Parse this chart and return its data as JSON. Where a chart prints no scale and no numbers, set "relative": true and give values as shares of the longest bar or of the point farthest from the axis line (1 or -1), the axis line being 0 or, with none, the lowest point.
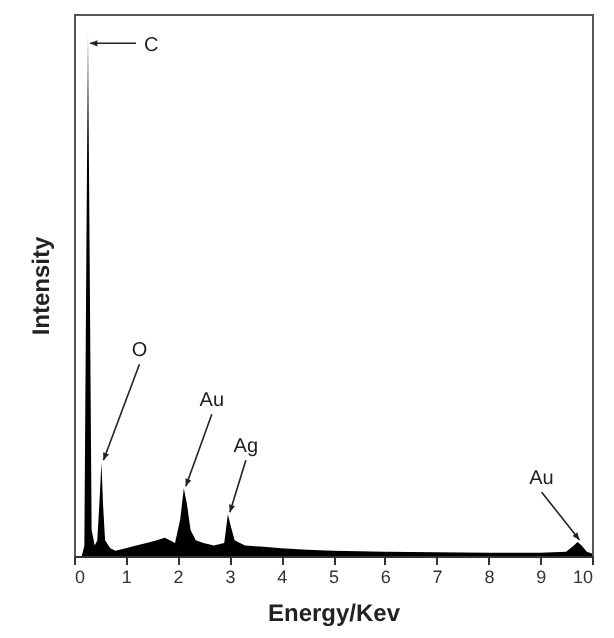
{
  "chart_data": {
    "type": "area",
    "xlabel": "Energy/Kev",
    "ylabel": "Intensity",
    "relative": true,
    "xlim": [
      0,
      10
    ],
    "xticks": [
      0,
      1,
      2,
      3,
      4,
      5,
      6,
      7,
      8,
      9,
      10
    ],
    "grid": false,
    "x": [
      0,
      0.15,
      0.2,
      0.24,
      0.27,
      0.3,
      0.34,
      0.4,
      0.45,
      0.5,
      0.53,
      0.56,
      0.6,
      0.7,
      0.8,
      1.0,
      1.2,
      1.4,
      1.6,
      1.75,
      1.85,
      1.95,
      2.05,
      2.12,
      2.18,
      2.25,
      2.35,
      2.5,
      2.7,
      2.9,
      2.97,
      3.02,
      3.1,
      3.3,
      3.6,
      4,
      4.5,
      5,
      6,
      7,
      8,
      9,
      9.5,
      9.65,
      9.72,
      9.8,
      9.9,
      10
    ],
    "series": [
      {
        "color": "#000000",
        "values": [
          0,
          0,
          0.02,
          0.6,
          1,
          0.6,
          0.05,
          0.02,
          0.03,
          0.12,
          0.18,
          0.1,
          0.03,
          0.015,
          0.01,
          0.015,
          0.02,
          0.025,
          0.03,
          0.035,
          0.03,
          0.025,
          0.07,
          0.13,
          0.1,
          0.05,
          0.03,
          0.025,
          0.02,
          0.025,
          0.08,
          0.06,
          0.03,
          0.02,
          0.018,
          0.015,
          0.012,
          0.01,
          0.008,
          0.007,
          0.006,
          0.006,
          0.008,
          0.02,
          0.027,
          0.02,
          0.008,
          0.005
        ]
      }
    ],
    "annotations": [
      {
        "text": "C",
        "x": 0.27,
        "y": 0.98
      },
      {
        "text": "O",
        "x": 0.53,
        "y": 0.18
      },
      {
        "text": "Au",
        "x": 2.12,
        "y": 0.13
      },
      {
        "text": "Ag",
        "x": 2.97,
        "y": 0.08
      },
      {
        "text": "Au",
        "x": 9.72,
        "y": 0.027
      }
    ]
  }
}
